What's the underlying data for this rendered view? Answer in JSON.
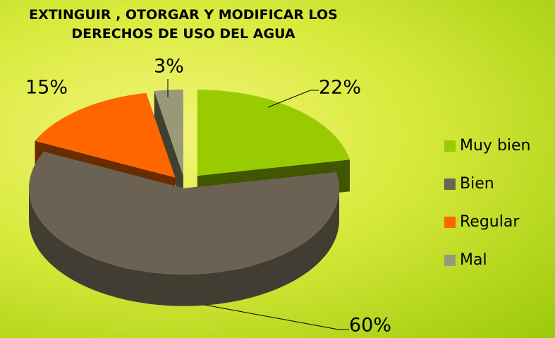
{
  "chart_data": {
    "type": "pie3d",
    "title": "EXTINGUIR , OTORGAR Y MODIFICAR LOS DERECHOS DE USO DEL AGUA",
    "categories": [
      "Muy bien",
      "Bien",
      "Regular",
      "Mal"
    ],
    "values": [
      22,
      60,
      15,
      3
    ],
    "value_labels": [
      "22%",
      "60%",
      "15%",
      "3%"
    ],
    "colors": [
      "#99cc00",
      "#6b6253",
      "#ff6600",
      "#999977"
    ],
    "legend": "right"
  }
}
